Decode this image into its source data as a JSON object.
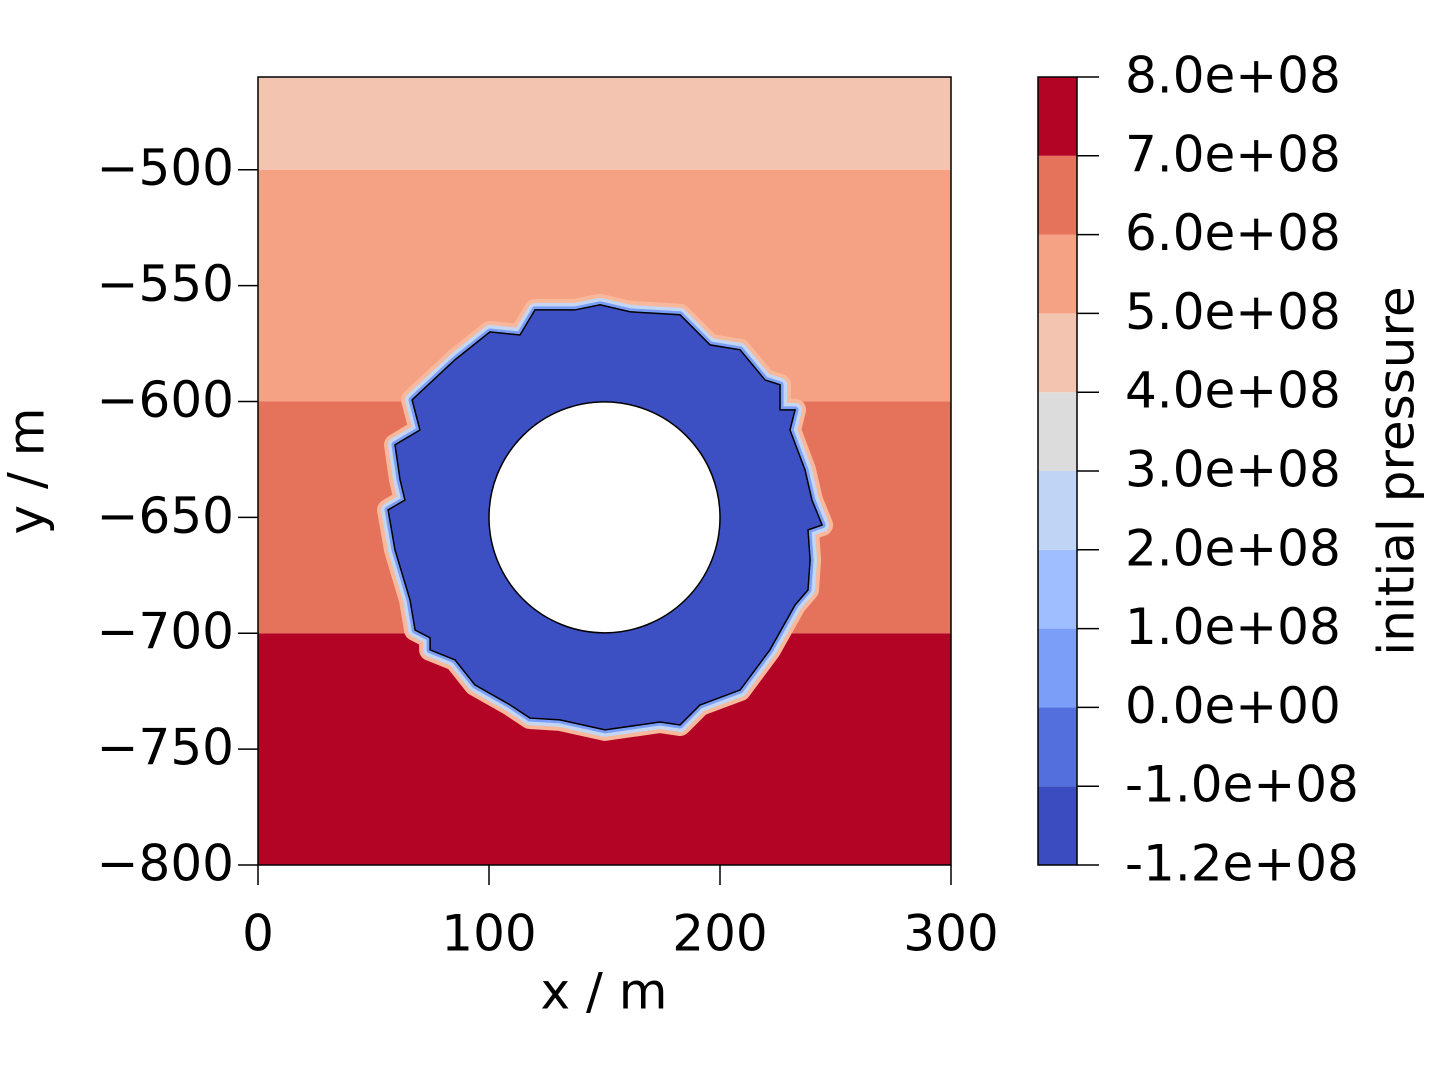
{
  "chart_data": {
    "type": "contour",
    "x_label": "x / m",
    "y_label": "y / m",
    "xlim": [
      0,
      300
    ],
    "ylim": [
      -800,
      -460
    ],
    "xticks": [
      0,
      100,
      200,
      300
    ],
    "yticks": [
      {
        "value": -800,
        "label": "−800"
      },
      {
        "value": -750,
        "label": "−750"
      },
      {
        "value": -700,
        "label": "−700"
      },
      {
        "value": -650,
        "label": "−650"
      },
      {
        "value": -600,
        "label": "−600"
      },
      {
        "value": -550,
        "label": "−550"
      },
      {
        "value": -500,
        "label": "−500"
      }
    ],
    "bands": [
      {
        "y": [
          -800,
          -700
        ],
        "color": "#b40426"
      },
      {
        "y": [
          -700,
          -600
        ],
        "color": "#e5735b"
      },
      {
        "y": [
          -600,
          -500
        ],
        "color": "#f5a183"
      },
      {
        "y": [
          -500,
          -460
        ],
        "color": "#f3c5b0"
      }
    ],
    "blob": {
      "color": "#3d50c3",
      "x": [
        119.9,
        137.2,
        148.1,
        161.0,
        182.7,
        195.7,
        208.7,
        219.5,
        226.0,
        226.0,
        232.5,
        230.3,
        236.8,
        239.8,
        244.2,
        238.1,
        239.0,
        238.1,
        232.5,
        221.6,
        208.7,
        191.3,
        182.7,
        174.0,
        150.2,
        130.7,
        117.7,
        109.1,
        93.9,
        85.3,
        74.5,
        74.5,
        68.0,
        65.8,
        59.3,
        56.3,
        63.6,
        61.5,
        59.3,
        70.1,
        66.7,
        85.3,
        100.4,
        113.4
      ],
      "y": [
        -560.5,
        -560.5,
        -558.3,
        -561.3,
        -562.6,
        -575.6,
        -577.7,
        -590.7,
        -592.8,
        -603.6,
        -603.6,
        -612.3,
        -629.5,
        -642.5,
        -653.3,
        -655.4,
        -668.4,
        -681.3,
        -687.8,
        -707.2,
        -724.5,
        -731.0,
        -739.6,
        -738.3,
        -741.7,
        -737.4,
        -736.6,
        -730.9,
        -722.3,
        -711.5,
        -707.2,
        -702.0,
        -698.6,
        -685.6,
        -664.0,
        -646.8,
        -642.5,
        -633.8,
        -618.7,
        -612.3,
        -599.3,
        -582.0,
        -570.0,
        -571.3
      ]
    },
    "hole": {
      "cx": 150,
      "cy": -650,
      "r": 50
    },
    "colorbar": {
      "label": "initial pressure",
      "ticks": [
        {
          "value": -120000000,
          "label": "-1.2e+08"
        },
        {
          "value": -100000000,
          "label": "-1.0e+08"
        },
        {
          "value": 0,
          "label": "0.0e+00"
        },
        {
          "value": 100000000,
          "label": "1.0e+08"
        },
        {
          "value": 200000000,
          "label": "2.0e+08"
        },
        {
          "value": 300000000,
          "label": "3.0e+08"
        },
        {
          "value": 400000000,
          "label": "4.0e+08"
        },
        {
          "value": 500000000,
          "label": "5.0e+08"
        },
        {
          "value": 600000000,
          "label": "6.0e+08"
        },
        {
          "value": 700000000,
          "label": "7.0e+08"
        },
        {
          "value": 800000000,
          "label": "8.0e+08"
        }
      ],
      "colors": [
        "#3b4cc0",
        "#536edd",
        "#7b9ff9",
        "#9ebeff",
        "#c0d4f5",
        "#dddcdc",
        "#f3c5b0",
        "#f5a183",
        "#e5735b",
        "#b40426"
      ]
    }
  }
}
